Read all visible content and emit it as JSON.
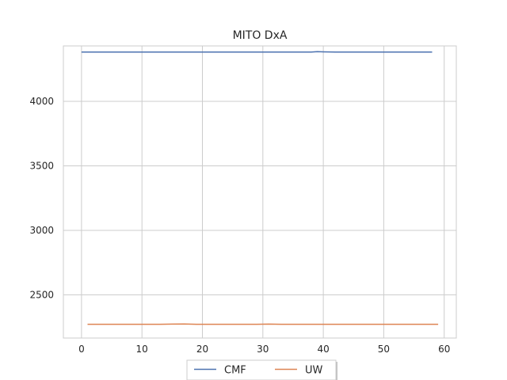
{
  "chart_data": {
    "type": "line",
    "title": "MITO DxA",
    "xlabel": "",
    "ylabel": "",
    "xlim": [
      -3,
      62
    ],
    "ylim": [
      2165,
      4430
    ],
    "xticks": [
      0,
      10,
      20,
      30,
      40,
      50,
      60
    ],
    "yticks": [
      2500,
      3000,
      3500,
      4000
    ],
    "grid": true,
    "legend_position": "bottom-center",
    "series": [
      {
        "name": "CMF",
        "color": "#4c72b0",
        "x": [
          0,
          2,
          4,
          6,
          8,
          10,
          12,
          14,
          16,
          18,
          20,
          22,
          24,
          26,
          28,
          30,
          32,
          34,
          36,
          38,
          39,
          40,
          42,
          44,
          46,
          48,
          50,
          52,
          54,
          56,
          58
        ],
        "y": [
          4382,
          4382,
          4382,
          4383,
          4382,
          4382,
          4382,
          4382,
          4383,
          4382,
          4382,
          4382,
          4382,
          4382,
          4383,
          4382,
          4382,
          4382,
          4382,
          4383,
          4385,
          4384,
          4382,
          4382,
          4382,
          4382,
          4383,
          4383,
          4382,
          4382,
          4383
        ]
      },
      {
        "name": "UW",
        "color": "#dd8452",
        "x": [
          1,
          3,
          5,
          7,
          9,
          11,
          13,
          15,
          17,
          19,
          21,
          23,
          25,
          27,
          29,
          31,
          33,
          35,
          37,
          39,
          41,
          43,
          45,
          47,
          49,
          51,
          53,
          55,
          57,
          59
        ],
        "y": [
          2272,
          2272,
          2272,
          2272,
          2272,
          2272,
          2272,
          2273,
          2274,
          2272,
          2272,
          2272,
          2272,
          2272,
          2272,
          2273,
          2272,
          2272,
          2272,
          2272,
          2272,
          2272,
          2272,
          2272,
          2272,
          2272,
          2272,
          2272,
          2272,
          2272
        ]
      }
    ]
  }
}
